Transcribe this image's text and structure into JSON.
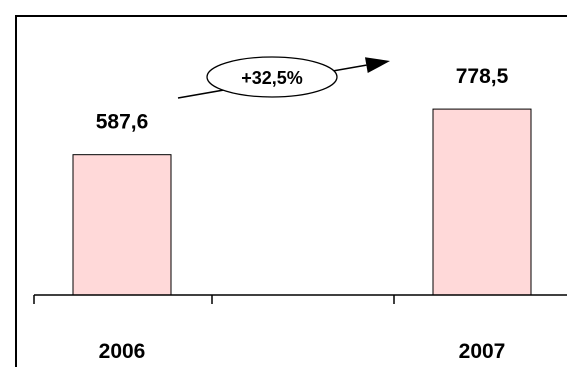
{
  "chart_data": {
    "type": "bar",
    "categories": [
      "2006",
      "2007"
    ],
    "values": [
      587.6,
      778.5
    ],
    "value_labels": [
      "587,6",
      "778,5"
    ],
    "annotation": "+32,5%",
    "title": "",
    "xlabel": "",
    "ylabel": "",
    "ylim": [
      0,
      1000
    ],
    "grid": false,
    "legend": "none"
  },
  "colors": {
    "bar_fill": "#ffd9d9",
    "bar_stroke": "#000000",
    "axis": "#000000",
    "frame": "#000000"
  }
}
